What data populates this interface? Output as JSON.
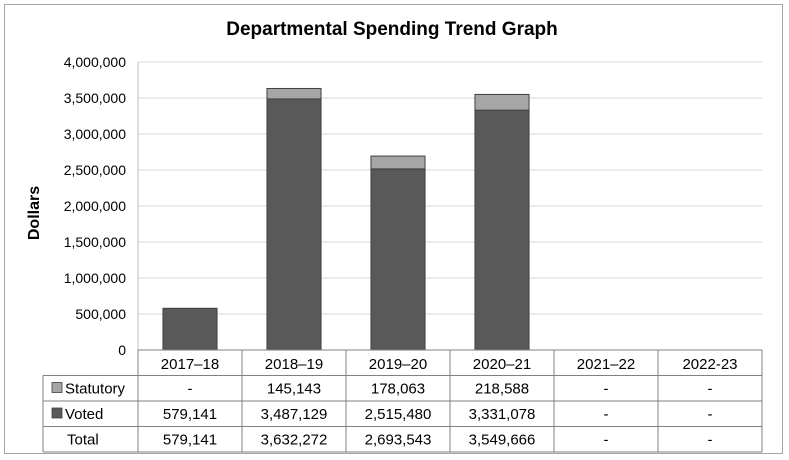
{
  "chart_data": {
    "type": "bar",
    "stacked": true,
    "title": "Departmental Spending Trend Graph",
    "ylabel": "Dollars",
    "xlabel": "",
    "ylim": [
      0,
      4000000
    ],
    "yticks": [
      0,
      500000,
      1000000,
      1500000,
      2000000,
      2500000,
      3000000,
      3500000,
      4000000
    ],
    "ytick_labels": [
      "0",
      "500,000",
      "1,000,000",
      "1,500,000",
      "2,000,000",
      "2,500,000",
      "3,000,000",
      "3,500,000",
      "4,000,000"
    ],
    "grid": true,
    "legend": "data-table",
    "categories": [
      "2017–18",
      "2018–19",
      "2019–20",
      "2020–21",
      "2021–22",
      "2022-23"
    ],
    "series": [
      {
        "name": "Voted",
        "color": "#595959",
        "values": [
          579141,
          3487129,
          2515480,
          3331078,
          0,
          0
        ],
        "labels": [
          "579,141",
          "3,487,129",
          "2,515,480",
          "3,331,078",
          "-",
          "-"
        ]
      },
      {
        "name": "Statutory",
        "color": "#a6a6a6",
        "values": [
          0,
          145143,
          178063,
          218588,
          0,
          0
        ],
        "labels": [
          "-",
          "145,143",
          "178,063",
          "218,588",
          "-",
          "-"
        ]
      }
    ],
    "total": {
      "name": "Total",
      "labels": [
        "579,141",
        "3,632,272",
        "2,693,543",
        "3,549,666",
        "-",
        "-"
      ]
    },
    "table_row_order": [
      "Statutory",
      "Voted",
      "Total"
    ]
  }
}
